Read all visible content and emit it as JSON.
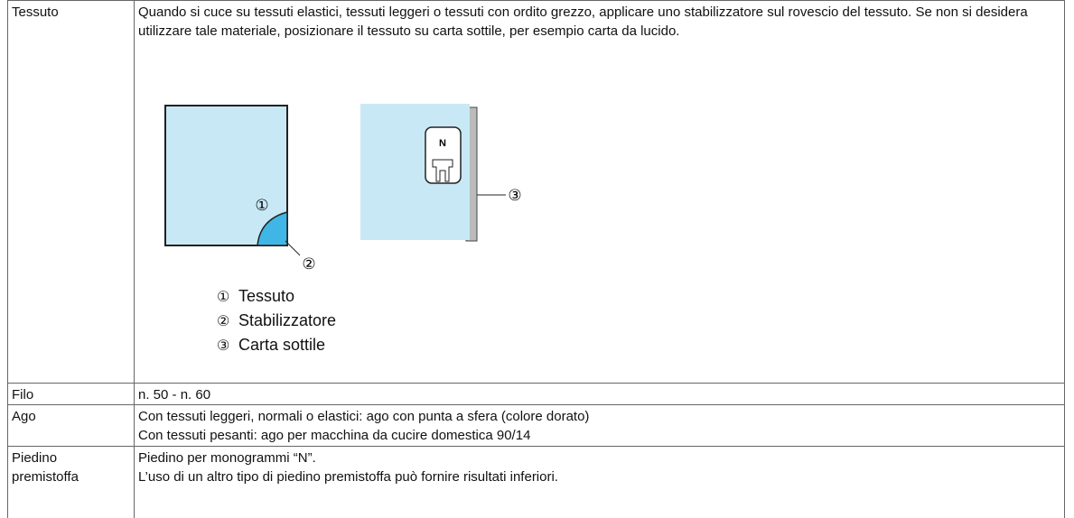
{
  "table": {
    "rows": [
      {
        "label": "Tessuto",
        "text": [
          "Quando si cuce su tessuti elastici, tessuti leggeri o tessuti con ordito grezzo, applicare uno stabilizzatore sul rovescio del tessuto. Se non si desidera utilizzare tale materiale, posizionare il tessuto su carta sottile, per esempio carta da lucido."
        ],
        "figure": {
          "callouts": [
            "①",
            "②",
            "③"
          ],
          "foot_label": "N"
        },
        "legend": [
          {
            "marker": "①",
            "text": "Tessuto"
          },
          {
            "marker": "②",
            "text": "Stabilizzatore"
          },
          {
            "marker": "③",
            "text": "Carta sottile"
          }
        ]
      },
      {
        "label": "Filo",
        "text": [
          "n. 50 - n. 60"
        ]
      },
      {
        "label": "Ago",
        "text": [
          "Con tessuti leggeri, normali o elastici: ago con punta a sfera (colore dorato)",
          "Con tessuti pesanti: ago per macchina da cucire domestica 90/14"
        ]
      },
      {
        "label": "Piedino premistoffa",
        "text": [
          "Piedino per monogrammi “N”.",
          "L’uso di un altro tipo di piedino premistoffa può fornire risultati inferiori."
        ]
      }
    ]
  }
}
